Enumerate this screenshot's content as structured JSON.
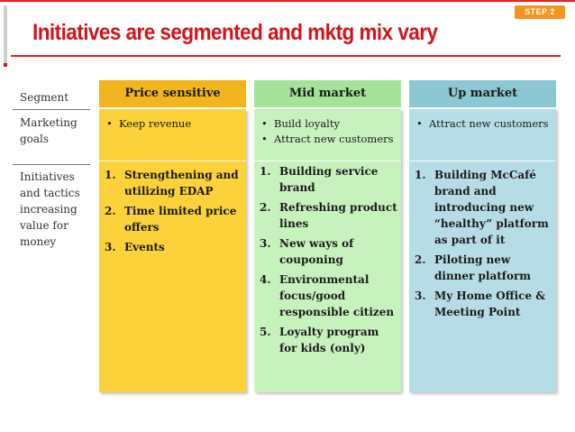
{
  "header": {
    "step_badge": "STEP 2",
    "title": "Initiatives are segmented and mktg mix vary"
  },
  "rows": {
    "segment": "Segment",
    "marketing_goals": [
      "Marketing",
      "goals"
    ],
    "initiatives": [
      "Initiatives",
      "and tactics",
      "increasing",
      "value for",
      "money"
    ]
  },
  "columns": [
    {
      "header": "Price sensitive",
      "goals": [
        "Keep revenue"
      ],
      "initiatives": [
        {
          "n": "1.",
          "text": "Strengthening and utilizing EDAP"
        },
        {
          "n": "2.",
          "text": "Time limited price offers"
        },
        {
          "n": "3.",
          "text": "Events"
        }
      ]
    },
    {
      "header": "Mid market",
      "goals": [
        "Build loyalty",
        "Attract new customers"
      ],
      "initiatives": [
        {
          "n": "1.",
          "text": "Building service brand"
        },
        {
          "n": "2.",
          "text": "Refreshing product lines"
        },
        {
          "n": "3.",
          "text": "New ways of couponing"
        },
        {
          "n": "4.",
          "text": "Environmental focus/good responsible citizen"
        },
        {
          "n": "5.",
          "text": "Loyalty program for kids (only)"
        }
      ]
    },
    {
      "header": "Up market",
      "goals": [
        "Attract new customers"
      ],
      "initiatives": [
        {
          "n": "1.",
          "text": "Building McCafé brand and introducing new “healthy” platform as part of it"
        },
        {
          "n": "2.",
          "text": "Piloting new dinner platform"
        },
        {
          "n": "3.",
          "text": "My Home Office & Meeting Point"
        }
      ]
    }
  ],
  "colors": {
    "title": "#d2141a",
    "accent_rule": "#ec1c24",
    "badge": "#f7931e",
    "price_header": "#f2b51e",
    "price_body": "#fbd23a",
    "mid_header": "#a6e39a",
    "mid_body": "#c8f2bd",
    "up_header": "#8cc8d4",
    "up_body": "#b6dde6"
  }
}
